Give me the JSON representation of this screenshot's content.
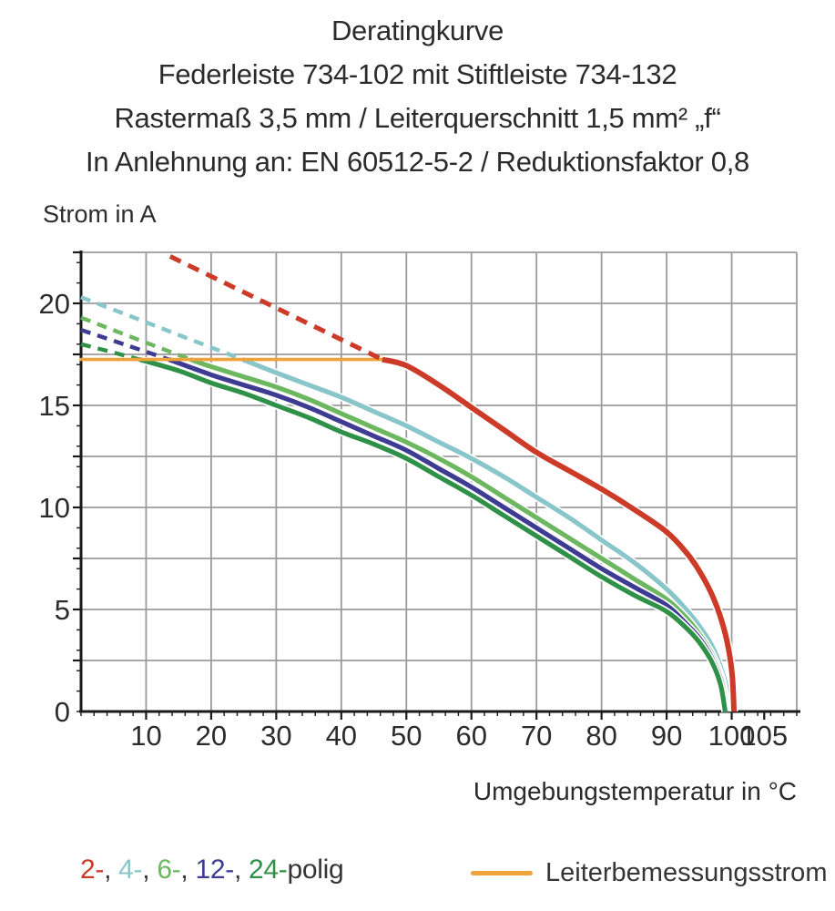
{
  "header": {
    "line1": "Deratingkurve",
    "line2": "Federleiste 734-102 mit Stiftleiste 734-132",
    "line3": "Rastermaß 3,5 mm / Leiterquerschnitt 1,5 mm² „f“",
    "line4": "In Anlehnung an: EN 60512-5-2 / Reduktionsfaktor 0,8"
  },
  "poles_legend": {
    "entries": [
      {
        "text": "2-",
        "name": "2-polig",
        "color": "#cc3a28"
      },
      {
        "text": "4-",
        "name": "4-polig",
        "color": "#89c6ca"
      },
      {
        "text": "6-",
        "name": "6-polig",
        "color": "#6cb75f"
      },
      {
        "text": "12-",
        "name": "12-polig",
        "color": "#3d3b92"
      },
      {
        "text": "24-",
        "name": "24-polig",
        "color": "#2f9148"
      }
    ],
    "separator": ", ",
    "suffix": "polig",
    "text_color": "#353535"
  },
  "chart_data": {
    "type": "line",
    "xlabel": "Umgebungstemperatur in °C",
    "ylabel": "Strom in A",
    "xlim": [
      0,
      110
    ],
    "ylim": [
      0,
      22.5
    ],
    "x_tick_labels": [
      10,
      20,
      30,
      40,
      50,
      60,
      70,
      80,
      90,
      100,
      105
    ],
    "y_tick_labels": [
      0,
      5,
      10,
      15,
      20
    ],
    "x_gridline_step": 10,
    "y_gridline_step": 2.5,
    "x_minor_tick_step": 2,
    "y_minor_tick_step": 1,
    "grid_color": "#9b9b9b",
    "axis_color": "#1a1a1a",
    "tick_label_color": "#2b2b2b",
    "rated_current_line": {
      "label": "Leiterbemessungsstrom",
      "value": 17.25,
      "x_start": 0,
      "x_end": 46.3,
      "color": "#efa23c"
    },
    "series": [
      {
        "name": "2-polig",
        "color": "#cc3a28",
        "width": 6,
        "dash_pattern": "13 9",
        "draw_last": true,
        "dashed": [
          [
            13.7,
            22.3
          ],
          [
            25,
            20.55
          ],
          [
            35,
            19.0
          ],
          [
            46.3,
            17.25
          ]
        ],
        "solid": [
          [
            46.3,
            17.25
          ],
          [
            50,
            16.95
          ],
          [
            55,
            16.0
          ],
          [
            60,
            14.9
          ],
          [
            65,
            13.8
          ],
          [
            70,
            12.7
          ],
          [
            75,
            11.8
          ],
          [
            80,
            10.9
          ],
          [
            85,
            9.9
          ],
          [
            90,
            8.8
          ],
          [
            93,
            7.8
          ],
          [
            95,
            6.9
          ],
          [
            97,
            5.7
          ],
          [
            98.5,
            4.4
          ],
          [
            99.5,
            3.1
          ],
          [
            100.1,
            1.7
          ],
          [
            100.35,
            0
          ]
        ]
      },
      {
        "name": "4-polig",
        "color": "#89c6ca",
        "width": 5.2,
        "dash_pattern": "11 8",
        "draw_last": false,
        "dashed": [
          [
            0,
            20.3
          ],
          [
            8,
            19.32
          ],
          [
            16,
            18.33
          ],
          [
            24.8,
            17.25
          ]
        ],
        "solid": [
          [
            24.8,
            17.25
          ],
          [
            30,
            16.6
          ],
          [
            35,
            16.0
          ],
          [
            40,
            15.4
          ],
          [
            45,
            14.7
          ],
          [
            50,
            14.0
          ],
          [
            55,
            13.2
          ],
          [
            60,
            12.4
          ],
          [
            65,
            11.5
          ],
          [
            70,
            10.5
          ],
          [
            75,
            9.5
          ],
          [
            80,
            8.4
          ],
          [
            85,
            7.3
          ],
          [
            90,
            6.0
          ],
          [
            93,
            5.0
          ],
          [
            95,
            4.2
          ],
          [
            97,
            3.2
          ],
          [
            98.5,
            2.0
          ],
          [
            99.3,
            1.0
          ],
          [
            99.7,
            0
          ]
        ]
      },
      {
        "name": "6-polig",
        "color": "#6cb75f",
        "width": 5.2,
        "dash_pattern": "11 8",
        "draw_last": false,
        "dashed": [
          [
            0,
            19.3
          ],
          [
            8,
            18.32
          ],
          [
            16.8,
            17.25
          ]
        ],
        "solid": [
          [
            16.8,
            17.25
          ],
          [
            20,
            16.9
          ],
          [
            25,
            16.4
          ],
          [
            30,
            15.9
          ],
          [
            35,
            15.3
          ],
          [
            40,
            14.6
          ],
          [
            45,
            13.9
          ],
          [
            50,
            13.2
          ],
          [
            55,
            12.4
          ],
          [
            60,
            11.5
          ],
          [
            65,
            10.5
          ],
          [
            70,
            9.5
          ],
          [
            75,
            8.5
          ],
          [
            80,
            7.5
          ],
          [
            85,
            6.5
          ],
          [
            90,
            5.5
          ],
          [
            93,
            4.6
          ],
          [
            95,
            3.8
          ],
          [
            97,
            2.8
          ],
          [
            98.5,
            1.6
          ],
          [
            99.4,
            0
          ]
        ]
      },
      {
        "name": "12-polig",
        "color": "#3d3b92",
        "width": 5.2,
        "dash_pattern": "11 8",
        "draw_last": false,
        "dashed": [
          [
            0,
            18.7
          ],
          [
            7,
            17.95
          ],
          [
            13.5,
            17.25
          ]
        ],
        "solid": [
          [
            13.5,
            17.25
          ],
          [
            20,
            16.5
          ],
          [
            25,
            16.0
          ],
          [
            30,
            15.5
          ],
          [
            35,
            14.9
          ],
          [
            40,
            14.2
          ],
          [
            45,
            13.5
          ],
          [
            50,
            12.8
          ],
          [
            55,
            11.9
          ],
          [
            60,
            11.0
          ],
          [
            65,
            10.0
          ],
          [
            70,
            9.0
          ],
          [
            75,
            8.0
          ],
          [
            80,
            7.0
          ],
          [
            85,
            6.1
          ],
          [
            90,
            5.2
          ],
          [
            93,
            4.3
          ],
          [
            95,
            3.6
          ],
          [
            97,
            2.6
          ],
          [
            98.5,
            1.4
          ],
          [
            99.2,
            0
          ]
        ]
      },
      {
        "name": "24-polig",
        "color": "#2f9148",
        "width": 5.2,
        "dash_pattern": "11 8",
        "draw_last": false,
        "dashed": [
          [
            0,
            18.0
          ],
          [
            4.5,
            17.63
          ],
          [
            9,
            17.25
          ]
        ],
        "solid": [
          [
            9,
            17.25
          ],
          [
            15,
            16.7
          ],
          [
            20,
            16.1
          ],
          [
            25,
            15.6
          ],
          [
            30,
            15.0
          ],
          [
            35,
            14.4
          ],
          [
            40,
            13.7
          ],
          [
            45,
            13.1
          ],
          [
            50,
            12.4
          ],
          [
            55,
            11.5
          ],
          [
            60,
            10.6
          ],
          [
            65,
            9.6
          ],
          [
            70,
            8.6
          ],
          [
            75,
            7.6
          ],
          [
            80,
            6.6
          ],
          [
            85,
            5.7
          ],
          [
            90,
            4.9
          ],
          [
            93,
            4.1
          ],
          [
            95,
            3.4
          ],
          [
            97,
            2.4
          ],
          [
            98.3,
            1.3
          ],
          [
            99.0,
            0
          ]
        ]
      }
    ]
  }
}
